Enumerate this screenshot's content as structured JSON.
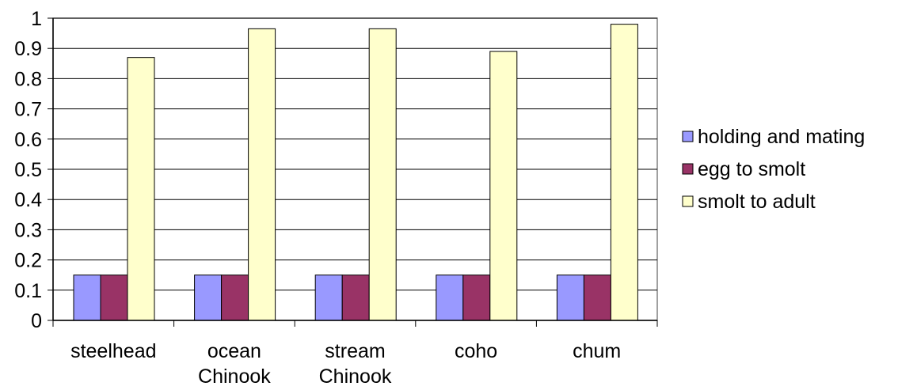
{
  "chart_data": {
    "type": "bar",
    "title": "",
    "xlabel": "",
    "ylabel": "",
    "ylim": [
      0,
      1
    ],
    "yticks": [
      "0",
      "0.1",
      "0.2",
      "0.3",
      "0.4",
      "0.5",
      "0.6",
      "0.7",
      "0.8",
      "0.9",
      "1"
    ],
    "grid": "horizontal",
    "legend_position": "right",
    "categories": [
      [
        "steelhead"
      ],
      [
        "ocean",
        "Chinook"
      ],
      [
        "stream",
        "Chinook"
      ],
      [
        "coho"
      ],
      [
        "chum"
      ]
    ],
    "series": [
      {
        "name": "holding and mating",
        "color": "#9999ff",
        "values": [
          0.15,
          0.15,
          0.15,
          0.15,
          0.15
        ]
      },
      {
        "name": "egg to smolt",
        "color": "#993366",
        "values": [
          0.15,
          0.15,
          0.15,
          0.15,
          0.15
        ]
      },
      {
        "name": "smolt to adult",
        "color": "#ffffcc",
        "values": [
          0.87,
          0.965,
          0.965,
          0.89,
          0.98
        ]
      }
    ]
  }
}
